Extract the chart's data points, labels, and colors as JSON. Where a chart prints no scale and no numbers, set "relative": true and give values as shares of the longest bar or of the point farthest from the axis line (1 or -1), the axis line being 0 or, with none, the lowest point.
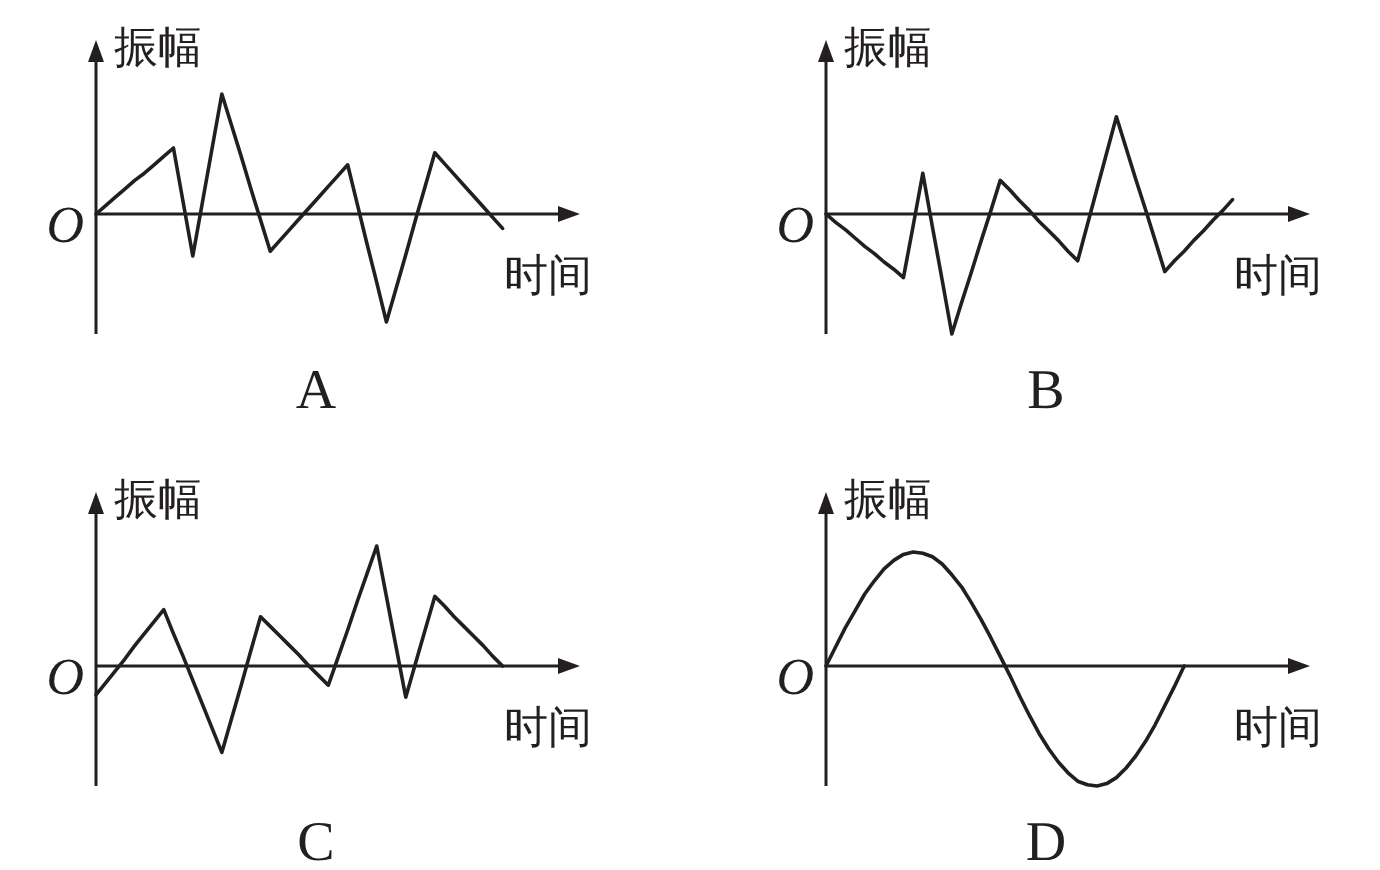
{
  "chart_data": [
    {
      "type": "line",
      "title": "A",
      "xlabel": "时间",
      "ylabel": "振幅",
      "relative": true,
      "categories": [
        null,
        null,
        null,
        null,
        null,
        null,
        null,
        null,
        null,
        null,
        null,
        null,
        null,
        null,
        null,
        null,
        null,
        null,
        null,
        null,
        null,
        null,
        null,
        null,
        null,
        null,
        null,
        null,
        null,
        null,
        null,
        null,
        null,
        null,
        null,
        null,
        null,
        null,
        null,
        null,
        null,
        null,
        null,
        null,
        null,
        null,
        null,
        null,
        null,
        null
      ],
      "series": [
        {
          "color": "#231f20",
          "values": [
            0,
            0.07,
            0.14,
            0.21,
            0.28,
            0.34,
            0.41,
            0.48,
            0.55,
            0.1,
            -0.35,
            0.1,
            0.55,
            1,
            0.74,
            0.48,
            0.21,
            -0.05,
            -0.31,
            -0.22,
            -0.13,
            -0.04,
            0.05,
            0.14,
            0.23,
            0.32,
            0.41,
            0.08,
            -0.25,
            -0.57,
            -0.9,
            -0.62,
            -0.34,
            -0.05,
            0.23,
            0.51,
            0.42,
            0.33,
            0.24,
            0.15,
            0.06,
            -0.03,
            -0.12,
            null,
            null,
            null,
            null,
            null,
            null,
            null
          ]
        }
      ],
      "annotations": [
        "O"
      ]
    },
    {
      "type": "line",
      "title": "B",
      "xlabel": "时间",
      "ylabel": "振幅",
      "relative": true,
      "categories": [
        null,
        null,
        null,
        null,
        null,
        null,
        null,
        null,
        null,
        null,
        null,
        null,
        null,
        null,
        null,
        null,
        null,
        null,
        null,
        null,
        null,
        null,
        null,
        null,
        null,
        null,
        null,
        null,
        null,
        null,
        null,
        null,
        null,
        null,
        null,
        null,
        null,
        null,
        null,
        null,
        null,
        null,
        null,
        null,
        null,
        null,
        null,
        null,
        null,
        null
      ],
      "series": [
        {
          "color": "#231f20",
          "values": [
            0,
            -0.07,
            -0.13,
            -0.2,
            -0.27,
            -0.33,
            -0.4,
            -0.46,
            -0.53,
            -0.1,
            0.34,
            -0.11,
            -0.55,
            -1,
            -0.74,
            -0.49,
            -0.23,
            0.02,
            0.28,
            0.2,
            0.11,
            0.03,
            -0.06,
            -0.14,
            -0.22,
            -0.31,
            -0.39,
            -0.09,
            0.21,
            0.51,
            0.81,
            0.55,
            0.29,
            0.04,
            -0.22,
            -0.48,
            -0.39,
            -0.31,
            -0.22,
            -0.14,
            -0.05,
            0.03,
            0.12,
            null,
            null,
            null,
            null,
            null,
            null,
            null
          ]
        }
      ],
      "annotations": [
        "O"
      ]
    },
    {
      "type": "line",
      "title": "C",
      "xlabel": "时间",
      "ylabel": "振幅",
      "relative": true,
      "categories": [
        null,
        null,
        null,
        null,
        null,
        null,
        null,
        null,
        null,
        null,
        null,
        null,
        null,
        null,
        null,
        null,
        null,
        null,
        null,
        null,
        null,
        null,
        null,
        null,
        null,
        null,
        null,
        null,
        null,
        null,
        null,
        null,
        null,
        null,
        null,
        null,
        null,
        null,
        null,
        null,
        null,
        null,
        null,
        null,
        null,
        null,
        null,
        null,
        null,
        null
      ],
      "series": [
        {
          "color": "#231f20",
          "values": [
            -0.24,
            -0.14,
            -0.04,
            0.06,
            0.17,
            0.27,
            0.37,
            0.47,
            0.27,
            0.08,
            -0.12,
            -0.32,
            -0.52,
            -0.72,
            -0.44,
            -0.16,
            0.13,
            0.41,
            0.33,
            0.25,
            0.17,
            0.09,
            0,
            -0.08,
            -0.16,
            0.07,
            0.3,
            0.54,
            0.77,
            1,
            0.58,
            0.16,
            -0.26,
            0.02,
            0.3,
            0.58,
            0.5,
            0.41,
            0.33,
            0.25,
            0.17,
            0.08,
            0,
            null,
            null,
            null,
            null,
            null,
            null,
            null
          ]
        }
      ],
      "annotations": [
        "O"
      ]
    },
    {
      "type": "line",
      "title": "D",
      "xlabel": "时间",
      "ylabel": "振幅",
      "relative": true,
      "categories": [
        null,
        null,
        null,
        null,
        null,
        null,
        null,
        null,
        null,
        null,
        null,
        null,
        null,
        null,
        null,
        null,
        null,
        null,
        null,
        null,
        null,
        null,
        null,
        null,
        null,
        null,
        null,
        null,
        null,
        null,
        null,
        null,
        null,
        null,
        null,
        null,
        null,
        null,
        null,
        null,
        null,
        null,
        null,
        null,
        null,
        null,
        null,
        null,
        null,
        null
      ],
      "series": [
        {
          "color": "#231f20",
          "values": [
            0,
            0.16,
            0.32,
            0.46,
            0.6,
            0.71,
            0.81,
            0.88,
            0.93,
            0.95,
            0.94,
            0.91,
            0.85,
            0.76,
            0.66,
            0.53,
            0.39,
            0.24,
            0.08,
            -0.08,
            -0.25,
            -0.41,
            -0.56,
            -0.69,
            -0.8,
            -0.89,
            -0.96,
            -0.99,
            -1,
            -0.98,
            -0.93,
            -0.85,
            -0.75,
            -0.63,
            -0.49,
            -0.33,
            -0.17,
            0,
            null,
            null,
            null,
            null,
            null,
            null,
            null,
            null,
            null,
            null,
            null,
            null
          ]
        }
      ],
      "annotations": [
        "O"
      ]
    }
  ]
}
